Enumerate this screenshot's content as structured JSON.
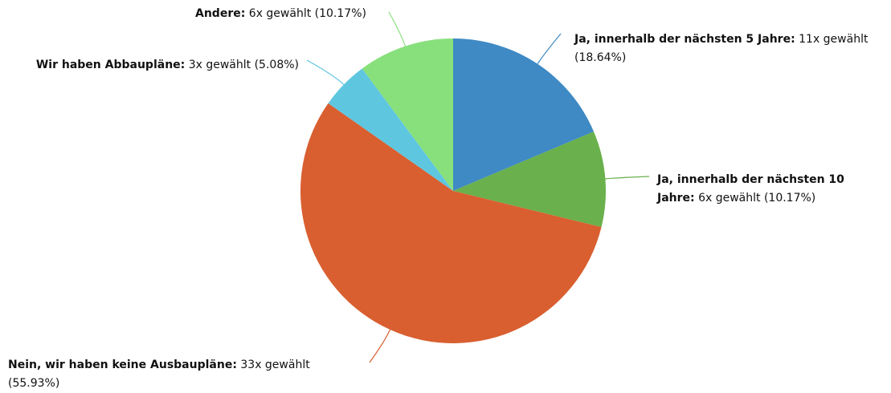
{
  "chart_data": {
    "type": "pie",
    "categories": [
      "Ja, innerhalb der nächsten 5 Jahre:",
      "Ja, innerhalb der nächsten 10 Jahre:",
      "Nein, wir haben keine Ausbaupläne:",
      "Wir haben Abbaupläne:",
      "Andere:"
    ],
    "values": [
      11,
      6,
      33,
      3,
      6
    ],
    "value_labels": [
      "11x gewählt (18.64%)",
      "6x gewählt (10.17%)",
      "33x gewählt (55.93%)",
      "3x gewählt (5.08%)",
      "6x gewählt (10.17%)"
    ],
    "colors": [
      "#3f8ac4",
      "#6ab04c",
      "#d95f30",
      "#5fc6e0",
      "#88e07c"
    ]
  }
}
